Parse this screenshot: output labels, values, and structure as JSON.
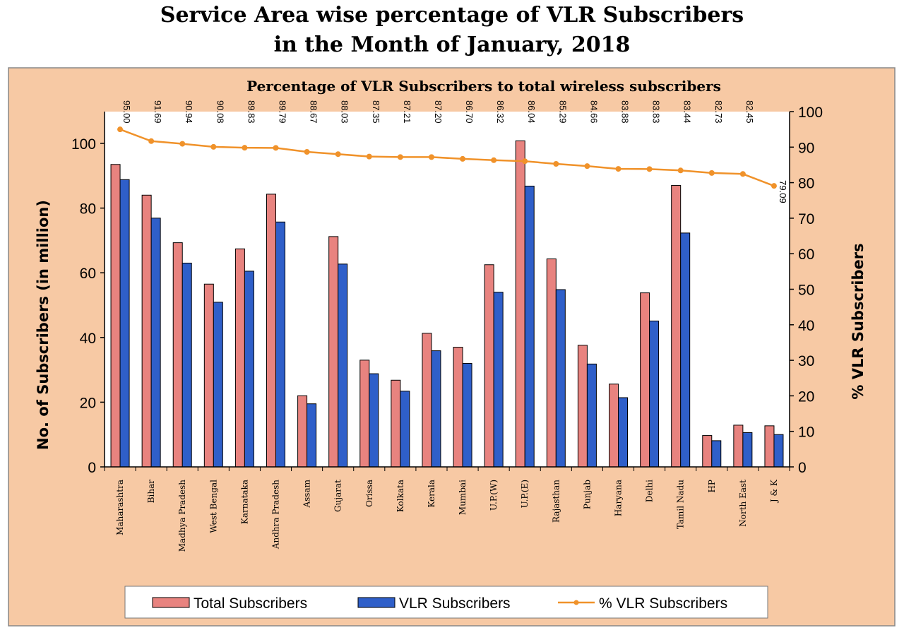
{
  "page": {
    "title_line1": "Service Area wise percentage of VLR Subscribers",
    "title_line2": "in the Month of January, 2018"
  },
  "chart_data": {
    "type": "bar",
    "title": "Percentage of VLR Subscribers to total wireless subscribers",
    "categories": [
      "Maharashtra",
      "Bihar",
      "Madhya Pradesh",
      "West Bengal",
      "Karnataka",
      "Andhra Pradesh",
      "Assam",
      "Gujarat",
      "Orissa",
      "Kolkata",
      "Kerala",
      "Mumbai",
      "U.P.(W)",
      "U.P.(E)",
      "Rajasthan",
      "Punjab",
      "Haryana",
      "Delhi",
      "Tamil Nadu",
      "HP",
      "North East",
      "J & K"
    ],
    "series": [
      {
        "name": "Total Subscribers",
        "axis": "left",
        "color": "#e8837f",
        "values": [
          93.5,
          84,
          69.3,
          56.5,
          67.4,
          84.3,
          22,
          71.2,
          33,
          26.8,
          41.3,
          37,
          62.5,
          100.8,
          64.3,
          37.6,
          25.6,
          53.8,
          87,
          9.7,
          12.9,
          12.7
        ]
      },
      {
        "name": "VLR Subscribers",
        "axis": "left",
        "color": "#2f5fc9",
        "values": [
          88.8,
          76.9,
          63,
          50.9,
          60.5,
          75.7,
          19.5,
          62.7,
          28.8,
          23.4,
          35.9,
          32,
          54,
          86.8,
          54.8,
          31.8,
          21.4,
          45.1,
          72.3,
          8.1,
          10.6,
          10
        ]
      },
      {
        "name": "% VLR Subscribers",
        "axis": "right",
        "type": "line",
        "color": "#f0922a",
        "values": [
          95.0,
          91.69,
          90.94,
          90.08,
          89.83,
          89.79,
          88.67,
          88.03,
          87.35,
          87.21,
          87.2,
          86.7,
          86.32,
          86.04,
          85.29,
          84.66,
          83.88,
          83.83,
          83.44,
          82.73,
          82.45,
          79.09
        ]
      }
    ],
    "data_labels": [
      "95.00",
      "91.69",
      "90.94",
      "90.08",
      "89.83",
      "89.79",
      "88.67",
      "88.03",
      "87.35",
      "87.21",
      "87.20",
      "86.70",
      "86.32",
      "86.04",
      "85.29",
      "84.66",
      "83.88",
      "83.83",
      "83.44",
      "82.73",
      "82.45",
      "79.09"
    ],
    "ylabel": "No. of Subscribers (in million)",
    "ylabel_right": "% VLR Subscribers",
    "ylim": [
      0,
      110
    ],
    "yticks": [
      0,
      20,
      40,
      60,
      80,
      100
    ],
    "ylim_right": [
      0,
      100
    ],
    "yticks_right": [
      0,
      10,
      20,
      30,
      40,
      50,
      60,
      70,
      80,
      90,
      100
    ],
    "legend": [
      "Total Subscribers",
      "VLR Subscribers",
      "% VLR Subscribers"
    ],
    "legend_position": "bottom",
    "colors": {
      "panel_bg": "#f7c9a4",
      "plot_bg": "#ffffff",
      "line_marker": "#f0922a"
    }
  }
}
